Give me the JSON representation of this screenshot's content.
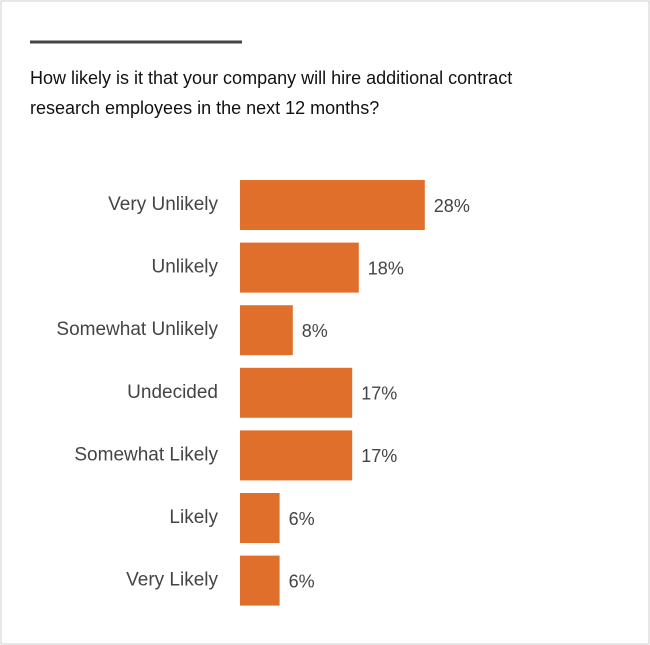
{
  "chart_data": {
    "type": "bar",
    "orientation": "horizontal",
    "title": [
      "How likely is it that your company will hire additional contract",
      "research employees in the next 12 months?"
    ],
    "categories": [
      "Very Unlikely",
      "Unlikely",
      "Somewhat Unlikely",
      "Undecided",
      "Somewhat Likely",
      "Likely",
      "Very Likely"
    ],
    "values": [
      28,
      18,
      8,
      17,
      17,
      6,
      6
    ],
    "value_labels": [
      "28%",
      "18%",
      "8%",
      "17%",
      "17%",
      "6%",
      "6%"
    ],
    "color": "#e06f2b"
  }
}
